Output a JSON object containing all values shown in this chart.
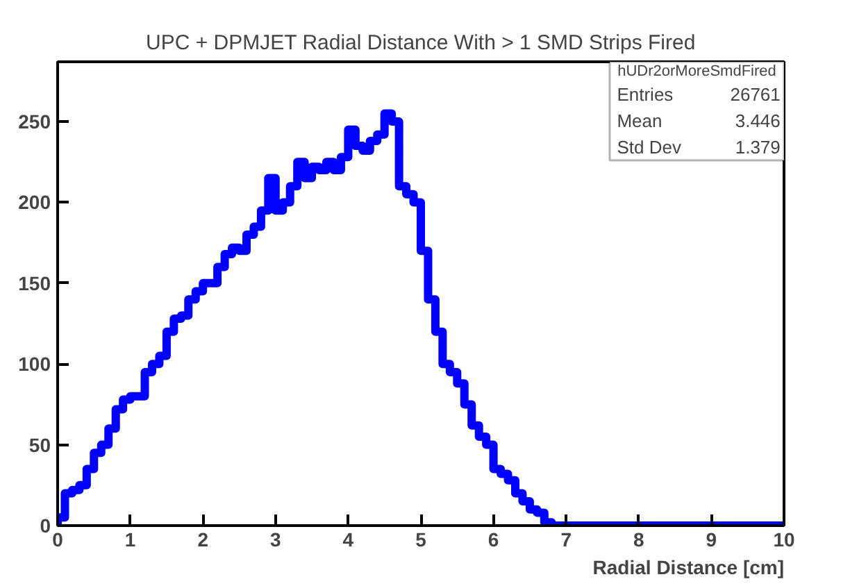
{
  "chart_data": {
    "type": "histogram",
    "title": "UPC + DPMJET Radial Distance With > 1 SMD Strips Fired",
    "xlabel": "Radial Distance [cm]",
    "bins": [
      0,
      0.1,
      0.2,
      0.3,
      0.4,
      0.5,
      0.6,
      0.7,
      0.8,
      0.9,
      1,
      1.1,
      1.2,
      1.3,
      1.4,
      1.5,
      1.6,
      1.7,
      1.8,
      1.9,
      2,
      2.1,
      2.2,
      2.3,
      2.4,
      2.5,
      2.6,
      2.7,
      2.8,
      2.9,
      3,
      3.1,
      3.2,
      3.3,
      3.4,
      3.5,
      3.6,
      3.7,
      3.8,
      3.9,
      4,
      4.1,
      4.2,
      4.3,
      4.4,
      4.5,
      4.6,
      4.7,
      4.8,
      4.9,
      5,
      5.1,
      5.2,
      5.3,
      5.4,
      5.5,
      5.6,
      5.7,
      5.8,
      5.9,
      6,
      6.1,
      6.2,
      6.3,
      6.4,
      6.5,
      6.6,
      6.7,
      6.8,
      6.9,
      7,
      7.1,
      7.2,
      7.3,
      7.4,
      7.5,
      7.6,
      7.7,
      7.8,
      7.9,
      8,
      8.1,
      8.2,
      8.3,
      8.4,
      8.5,
      8.6,
      8.7,
      8.8,
      8.9,
      9,
      9.1,
      9.2,
      9.3,
      9.4,
      9.5,
      9.6,
      9.7,
      9.8,
      9.9,
      10
    ],
    "values": [
      5,
      20,
      22,
      25,
      35,
      45,
      50,
      60,
      72,
      78,
      80,
      80,
      95,
      100,
      105,
      120,
      128,
      130,
      140,
      145,
      150,
      150,
      160,
      168,
      172,
      170,
      180,
      185,
      195,
      215,
      195,
      200,
      210,
      225,
      215,
      222,
      220,
      225,
      220,
      228,
      245,
      235,
      232,
      238,
      242,
      255,
      250,
      210,
      205,
      200,
      170,
      140,
      120,
      100,
      95,
      88,
      75,
      62,
      55,
      50,
      35,
      32,
      28,
      20,
      15,
      10,
      8,
      2,
      0,
      0,
      0,
      0,
      0,
      0,
      0,
      0,
      0,
      0,
      0,
      0,
      0,
      0,
      0,
      0,
      0,
      0,
      0,
      0,
      0,
      0,
      0,
      0,
      0,
      0,
      0,
      0,
      0,
      0,
      0,
      0
    ],
    "color": "#0000ff",
    "xlim": [
      0,
      10
    ],
    "xticks": [
      0,
      1,
      2,
      3,
      4,
      5,
      6,
      7,
      8,
      9,
      10
    ],
    "ylim": [
      0,
      287
    ],
    "yticks": [
      0,
      50,
      100,
      150,
      200,
      250
    ],
    "grid": false,
    "annotations": [
      "hUDr2orMoreSmdFired",
      "Entries",
      "26761",
      "Mean",
      "3.446",
      "Std Dev",
      "1.379"
    ]
  }
}
